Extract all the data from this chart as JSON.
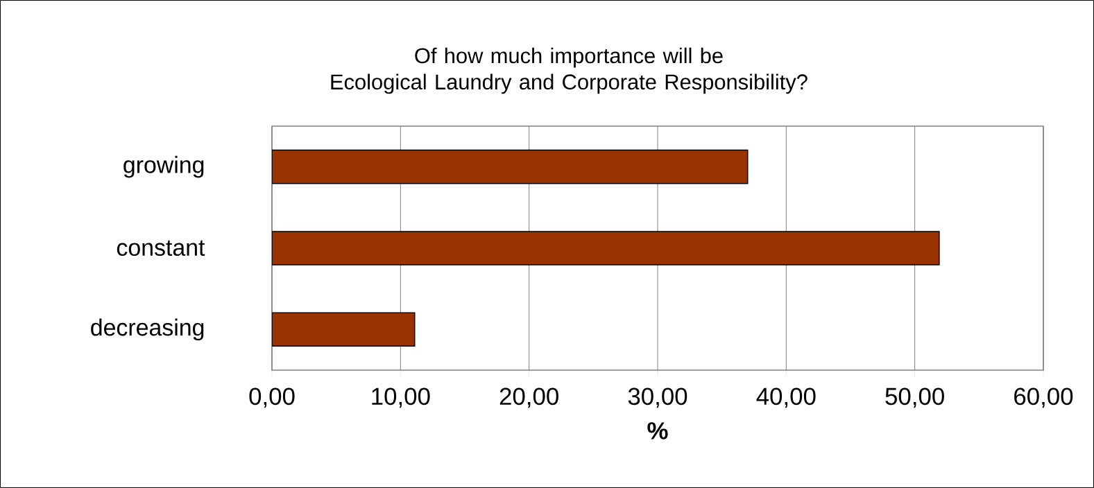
{
  "chart_data": {
    "type": "bar",
    "orientation": "horizontal",
    "title": "Of how much importance will be\nEcological Laundry and Corporate Responsibility?",
    "xlabel": "%",
    "categories": [
      "growing",
      "constant",
      "decreasing"
    ],
    "values": [
      37.0,
      51.9,
      11.1
    ],
    "color": "#993300",
    "xlim": [
      0,
      60
    ],
    "xticks": [
      {
        "value": 0,
        "label": "0,00"
      },
      {
        "value": 10,
        "label": "10,00"
      },
      {
        "value": 20,
        "label": "20,00"
      },
      {
        "value": 30,
        "label": "30,00"
      },
      {
        "value": 40,
        "label": "40,00"
      },
      {
        "value": 50,
        "label": "50,00"
      },
      {
        "value": 60,
        "label": "60,00"
      }
    ],
    "grid": "x"
  }
}
